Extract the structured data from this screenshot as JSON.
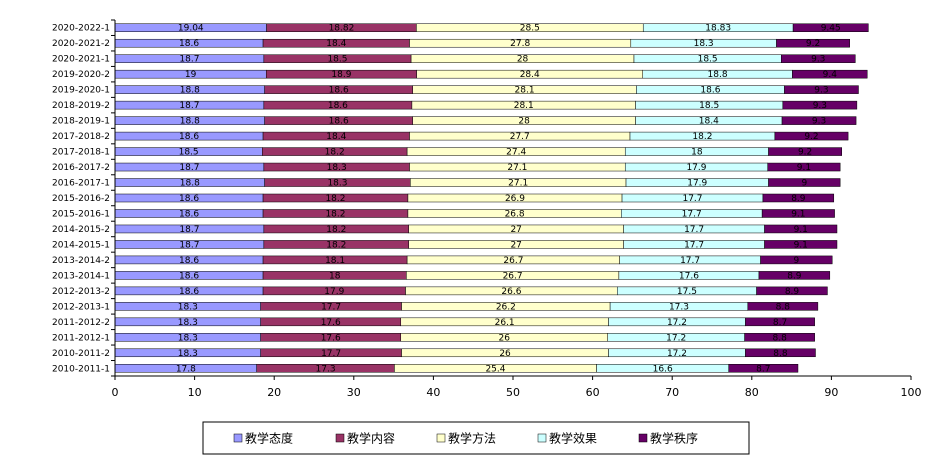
{
  "chart_data": {
    "type": "bar",
    "orientation": "horizontal",
    "stacked": true,
    "categories": [
      "2020-2022-1",
      "2020-2021-2",
      "2020-2021-1",
      "2019-2020-2",
      "2019-2020-1",
      "2018-2019-2",
      "2018-2019-1",
      "2017-2018-2",
      "2017-2018-1",
      "2016-2017-2",
      "2016-2017-1",
      "2015-2016-2",
      "2015-2016-1",
      "2014-2015-2",
      "2014-2015-1",
      "2013-2014-2",
      "2013-2014-1",
      "2012-2013-2",
      "2012-2013-1",
      "2011-2012-2",
      "2011-2012-1",
      "2010-2011-2",
      "2010-2011-1"
    ],
    "series": [
      {
        "name": "教学态度",
        "color": "#9999ff",
        "values": [
          19.04,
          18.6,
          18.7,
          19,
          18.8,
          18.7,
          18.8,
          18.6,
          18.5,
          18.7,
          18.8,
          18.6,
          18.6,
          18.7,
          18.7,
          18.6,
          18.6,
          18.6,
          18.3,
          18.3,
          18.3,
          18.3,
          17.8
        ]
      },
      {
        "name": "教学内容",
        "color": "#993366",
        "values": [
          18.82,
          18.4,
          18.5,
          18.9,
          18.6,
          18.6,
          18.6,
          18.4,
          18.2,
          18.3,
          18.3,
          18.2,
          18.2,
          18.2,
          18.2,
          18.1,
          18,
          17.9,
          17.7,
          17.6,
          17.6,
          17.7,
          17.3
        ]
      },
      {
        "name": "教学方法",
        "color": "#ffffcc",
        "values": [
          28.5,
          27.8,
          28,
          28.4,
          28.1,
          28.1,
          28,
          27.7,
          27.4,
          27.1,
          27.1,
          26.9,
          26.8,
          27,
          27,
          26.7,
          26.7,
          26.6,
          26.2,
          26.1,
          26,
          26,
          25.4
        ]
      },
      {
        "name": "教学效果",
        "color": "#ccffff",
        "values": [
          18.83,
          18.3,
          18.5,
          18.8,
          18.6,
          18.5,
          18.4,
          18.2,
          18,
          17.9,
          17.9,
          17.7,
          17.7,
          17.7,
          17.7,
          17.7,
          17.6,
          17.5,
          17.3,
          17.2,
          17.2,
          17.2,
          16.6
        ]
      },
      {
        "name": "教学秩序",
        "color": "#660066",
        "values": [
          9.45,
          9.2,
          9.3,
          9.4,
          9.3,
          9.3,
          9.3,
          9.2,
          9.2,
          9.1,
          9,
          8.9,
          9.1,
          9.1,
          9.1,
          9,
          8.9,
          8.9,
          8.8,
          8.7,
          8.8,
          8.8,
          8.7
        ]
      }
    ],
    "labels": [
      [
        "19.04",
        "18.82",
        "28.5",
        "18.83",
        "9.45"
      ],
      [
        "18.6",
        "18.4",
        "27.8",
        "18.3",
        "9.2"
      ],
      [
        "18.7",
        "18.5",
        "28",
        "18.5",
        "9.3"
      ],
      [
        "19",
        "18.9",
        "28.4",
        "18.8",
        "9.4"
      ],
      [
        "18.8",
        "18.6",
        "28.1",
        "18.6",
        "9.3"
      ],
      [
        "18.7",
        "18.6",
        "28.1",
        "18.5",
        "9.3"
      ],
      [
        "18.8",
        "18.6",
        "28",
        "18.4",
        "9.3"
      ],
      [
        "18.6",
        "18.4",
        "27.7",
        "18.2",
        "9.2"
      ],
      [
        "18.5",
        "18.2",
        "27.4",
        "18",
        "9.2"
      ],
      [
        "18.7",
        "18.3",
        "27.1",
        "17.9",
        "9.1"
      ],
      [
        "18.8",
        "18.3",
        "27.1",
        "17.9",
        "9"
      ],
      [
        "18.6",
        "18.2",
        "26.9",
        "17.7",
        "8.9"
      ],
      [
        "18.6",
        "18.2",
        "26.8",
        "17.7",
        "9.1"
      ],
      [
        "18.7",
        "18.2",
        "27",
        "17.7",
        "9.1"
      ],
      [
        "18.7",
        "18.2",
        "27",
        "17.7",
        "9.1"
      ],
      [
        "18.6",
        "18.1",
        "26.7",
        "17.7",
        "9"
      ],
      [
        "18.6",
        "18",
        "26.7",
        "17.6",
        "8.9"
      ],
      [
        "18.6",
        "17.9",
        "26.6",
        "17.5",
        "8.9"
      ],
      [
        "18.3",
        "17.7",
        "26.2",
        "17.3",
        "8.8"
      ],
      [
        "18.3",
        "17.6",
        "26.1",
        "17.2",
        "8.7"
      ],
      [
        "18.3",
        "17.6",
        "26",
        "17.2",
        "8.8"
      ],
      [
        "18.3",
        "17.7",
        "26",
        "17.2",
        "8.8"
      ],
      [
        "17.8",
        "17.3",
        "25.4",
        "16.6",
        "8.7"
      ]
    ],
    "xlim": [
      0,
      100
    ],
    "xticks": [
      0,
      10,
      20,
      30,
      40,
      50,
      60,
      70,
      80,
      90,
      100
    ],
    "title": "",
    "xlabel": "",
    "ylabel": "",
    "grid": false,
    "legend": "bottom"
  }
}
